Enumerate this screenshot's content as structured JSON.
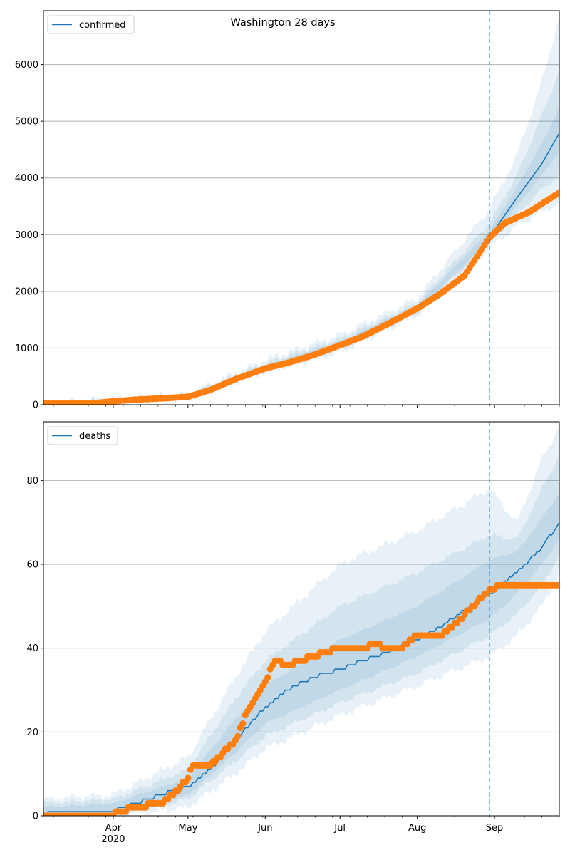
{
  "figure": {
    "title": "Washington 28 days",
    "date_labels": [
      {
        "date": "2020-04-01",
        "text": "Apr"
      },
      {
        "date": "2020-05-01",
        "text": "May"
      },
      {
        "date": "2020-06-01",
        "text": "Jun"
      },
      {
        "date": "2020-07-01",
        "text": "Jul"
      },
      {
        "date": "2020-08-01",
        "text": "Aug"
      },
      {
        "date": "2020-09-01",
        "text": "Sep"
      }
    ],
    "year_label": "2020",
    "colors": {
      "model_line": "#1f77b4",
      "observed": "#ff7f0e",
      "band": "#1f77b4",
      "vline": "#1f77b4",
      "grid": "#b0b0b0"
    }
  },
  "chart_data": [
    {
      "type": "line",
      "legend": "confirmed",
      "legend_position": "top-left",
      "grid": "y",
      "xlim": [
        "2020-03-04",
        "2020-09-27"
      ],
      "ylim": [
        0,
        6950
      ],
      "yticks": [
        0,
        1000,
        2000,
        3000,
        4000,
        5000,
        6000
      ],
      "forecast_start": "2020-08-30",
      "observed_series": {
        "x": [
          "2020-03-04",
          "2020-03-15",
          "2020-03-25",
          "2020-04-01",
          "2020-04-10",
          "2020-04-20",
          "2020-05-01",
          "2020-05-10",
          "2020-05-20",
          "2020-06-01",
          "2020-06-10",
          "2020-06-20",
          "2020-07-01",
          "2020-07-10",
          "2020-07-20",
          "2020-08-01",
          "2020-08-10",
          "2020-08-20",
          "2020-08-30",
          "2020-09-05",
          "2020-09-15",
          "2020-09-27"
        ],
        "y": [
          20,
          20,
          30,
          60,
          90,
          110,
          140,
          260,
          450,
          640,
          740,
          870,
          1050,
          1200,
          1420,
          1700,
          1950,
          2280,
          2950,
          3200,
          3400,
          3740
        ]
      },
      "model_series": {
        "x": [
          "2020-03-04",
          "2020-04-01",
          "2020-05-01",
          "2020-05-15",
          "2020-06-01",
          "2020-07-01",
          "2020-08-01",
          "2020-08-20",
          "2020-08-30",
          "2020-09-10",
          "2020-09-20",
          "2020-09-27"
        ],
        "y": [
          15,
          50,
          140,
          330,
          650,
          1070,
          1700,
          2250,
          2960,
          3650,
          4250,
          4790
        ]
      },
      "bands": [
        {
          "x": [
            "2020-03-04",
            "2020-05-01",
            "2020-06-01",
            "2020-07-01",
            "2020-08-01",
            "2020-08-30",
            "2020-09-10",
            "2020-09-20",
            "2020-09-27"
          ],
          "lower": [
            0,
            100,
            580,
            930,
            1570,
            2760,
            3150,
            3400,
            3550
          ],
          "upper": [
            40,
            190,
            790,
            1230,
            1880,
            3450,
            4400,
            5700,
            6850
          ]
        },
        {
          "x": [
            "2020-03-04",
            "2020-05-01",
            "2020-06-01",
            "2020-07-01",
            "2020-08-01",
            "2020-08-30",
            "2020-09-10",
            "2020-09-20",
            "2020-09-27"
          ],
          "lower": [
            5,
            115,
            610,
            980,
            1620,
            2840,
            3350,
            3800,
            4050
          ],
          "upper": [
            30,
            170,
            730,
            1160,
            1800,
            3200,
            4050,
            5100,
            5900
          ]
        },
        {
          "x": [
            "2020-03-04",
            "2020-05-01",
            "2020-06-01",
            "2020-07-01",
            "2020-08-01",
            "2020-08-30",
            "2020-09-10",
            "2020-09-20",
            "2020-09-27"
          ],
          "lower": [
            10,
            128,
            630,
            1025,
            1660,
            2900,
            3500,
            4050,
            4450
          ],
          "upper": [
            22,
            155,
            690,
            1110,
            1750,
            3070,
            3850,
            4600,
            5250
          ]
        }
      ]
    },
    {
      "type": "line",
      "legend": "deaths",
      "legend_position": "top-left",
      "grid": "y",
      "xlim": [
        "2020-03-04",
        "2020-09-27"
      ],
      "ylim": [
        0,
        94
      ],
      "yticks": [
        0,
        20,
        40,
        60,
        80
      ],
      "forecast_start": "2020-08-30",
      "observed_series": {
        "x": [
          "2020-03-04",
          "2020-03-31",
          "2020-04-03",
          "2020-04-10",
          "2020-04-20",
          "2020-04-25",
          "2020-05-01",
          "2020-05-03",
          "2020-05-10",
          "2020-05-15",
          "2020-05-20",
          "2020-05-25",
          "2020-06-01",
          "2020-06-05",
          "2020-06-10",
          "2020-06-15",
          "2020-06-20",
          "2020-06-25",
          "2020-07-01",
          "2020-07-10",
          "2020-07-15",
          "2020-07-20",
          "2020-07-25",
          "2020-08-01",
          "2020-08-10",
          "2020-08-15",
          "2020-08-20",
          "2020-08-25",
          "2020-08-30",
          "2020-09-05",
          "2020-09-15",
          "2020-09-27"
        ],
        "y": [
          0,
          0,
          1,
          2,
          3,
          5,
          9,
          12,
          12,
          15,
          18,
          25,
          32,
          37,
          36,
          37,
          38,
          39,
          40,
          40,
          41,
          40,
          40,
          43,
          43,
          45,
          48,
          51,
          54,
          55,
          55,
          55
        ]
      },
      "model_series": {
        "x": [
          "2020-03-04",
          "2020-03-08",
          "2020-03-31",
          "2020-04-10",
          "2020-04-20",
          "2020-05-01",
          "2020-05-10",
          "2020-05-20",
          "2020-06-01",
          "2020-06-10",
          "2020-06-20",
          "2020-07-01",
          "2020-07-10",
          "2020-07-20",
          "2020-08-01",
          "2020-08-10",
          "2020-08-20",
          "2020-08-30",
          "2020-09-10",
          "2020-09-20",
          "2020-09-27"
        ],
        "y": [
          0,
          1,
          1,
          3,
          5,
          7,
          11,
          18,
          26,
          30,
          33,
          35,
          37,
          39,
          42,
          45,
          49,
          53,
          58,
          64,
          70
        ]
      },
      "bands": [
        {
          "x": [
            "2020-03-04",
            "2020-04-01",
            "2020-05-01",
            "2020-05-20",
            "2020-06-01",
            "2020-07-01",
            "2020-08-01",
            "2020-08-30",
            "2020-09-10",
            "2020-09-20",
            "2020-09-27"
          ],
          "lower": [
            0,
            0,
            2,
            10,
            16,
            24,
            31,
            38,
            43,
            50,
            58
          ],
          "upper": [
            4,
            5,
            14,
            33,
            44,
            60,
            68,
            78,
            70,
            85,
            93
          ]
        },
        {
          "x": [
            "2020-03-04",
            "2020-04-01",
            "2020-05-01",
            "2020-05-20",
            "2020-06-01",
            "2020-07-01",
            "2020-08-01",
            "2020-08-30",
            "2020-09-10",
            "2020-09-20",
            "2020-09-27"
          ],
          "lower": [
            0,
            0,
            4,
            13,
            19,
            27,
            34,
            43,
            48,
            55,
            62
          ],
          "upper": [
            3,
            4,
            11,
            28,
            37,
            50,
            58,
            67,
            66,
            78,
            86
          ]
        },
        {
          "x": [
            "2020-03-04",
            "2020-04-01",
            "2020-05-01",
            "2020-05-20",
            "2020-06-01",
            "2020-07-01",
            "2020-08-01",
            "2020-08-30",
            "2020-09-10",
            "2020-09-20",
            "2020-09-27"
          ],
          "lower": [
            0,
            0,
            5,
            15,
            22,
            30,
            38,
            47,
            53,
            60,
            66
          ],
          "upper": [
            2,
            3,
            9,
            23,
            31,
            42,
            50,
            61,
            63,
            71,
            77
          ]
        }
      ]
    }
  ]
}
